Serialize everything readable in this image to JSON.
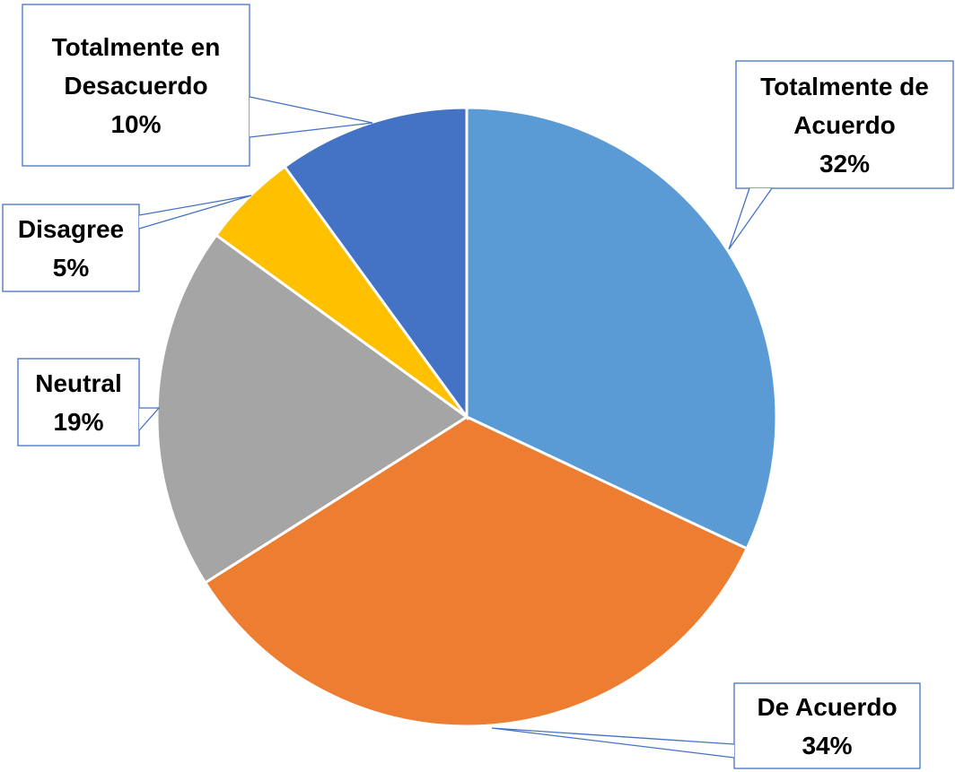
{
  "chart_data": {
    "type": "pie",
    "categories": [
      "Totalmente de Acuerdo",
      "De Acuerdo",
      "Neutral",
      "Disagree",
      "Totalmente en Desacuerdo"
    ],
    "values": [
      32,
      34,
      19,
      5,
      10
    ],
    "value_labels": [
      "32%",
      "34%",
      "19%",
      "5%",
      "10%"
    ],
    "colors": [
      "#5b9bd5",
      "#ed7d31",
      "#a5a5a5",
      "#ffc000",
      "#4472c4"
    ]
  }
}
